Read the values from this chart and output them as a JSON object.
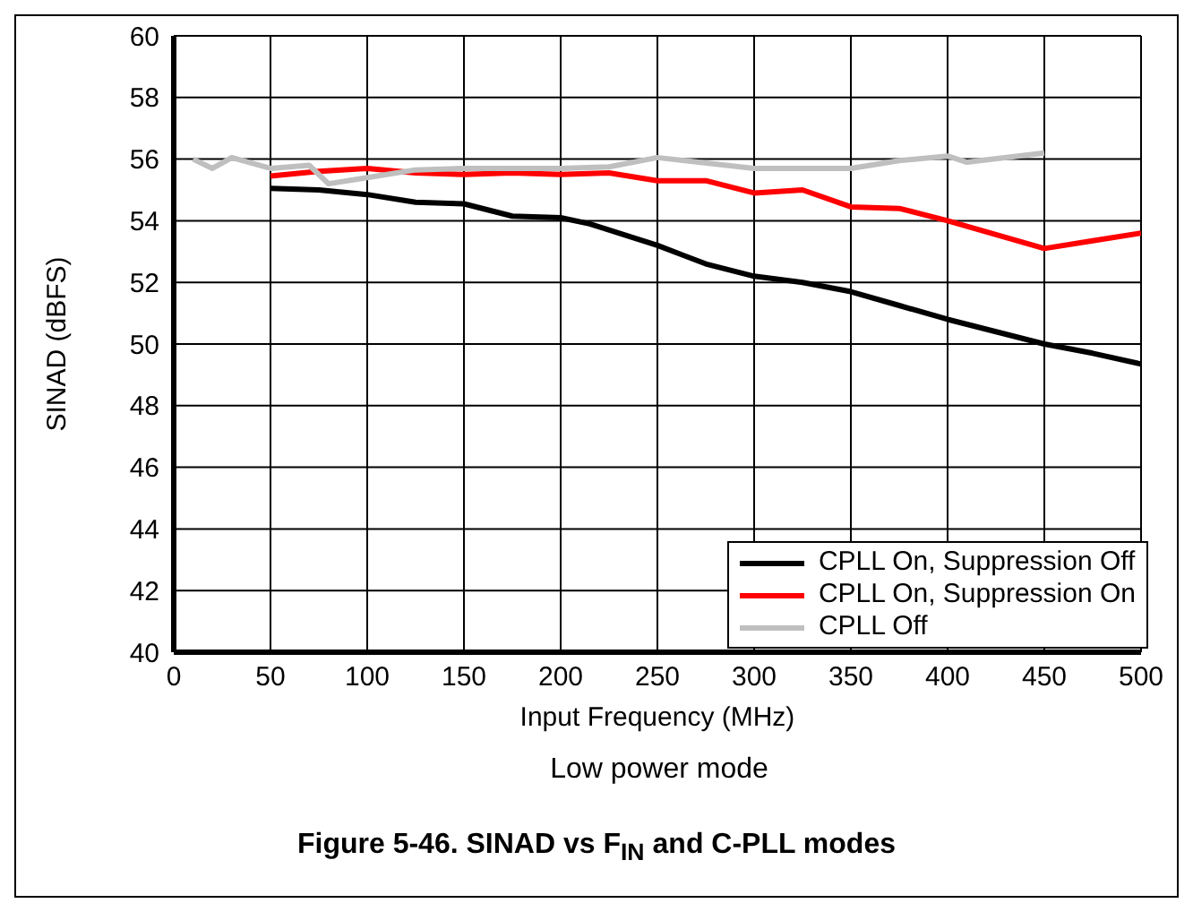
{
  "chart_data": {
    "type": "line",
    "title": "Figure 5-46. SINAD vs F$_{IN}$ and C-PLL modes",
    "subtitle": "Low power mode",
    "xlabel": "Input Frequency (MHz)",
    "ylabel": "SINAD (dBFS)",
    "xlim": [
      0,
      500
    ],
    "xticks": [
      0,
      50,
      100,
      150,
      200,
      250,
      300,
      350,
      400,
      450,
      500
    ],
    "ylim": [
      40,
      60
    ],
    "yticks": [
      40,
      42,
      44,
      46,
      48,
      50,
      52,
      54,
      56,
      58,
      60
    ],
    "grid": true,
    "legend": "bottom right",
    "marker": "none",
    "line_style": "solid",
    "series": [
      {
        "name": "CPLL On, Suppression Off",
        "color": "#000000",
        "x": [
          50,
          75,
          100,
          125,
          150,
          175,
          200,
          215,
          250,
          275,
          300,
          325,
          350,
          375,
          400,
          425,
          450,
          475,
          500
        ],
        "values": [
          55.05,
          55.0,
          54.85,
          54.6,
          54.55,
          54.15,
          54.1,
          53.9,
          53.2,
          52.6,
          52.2,
          52.0,
          51.7,
          51.25,
          50.8,
          50.4,
          50.0,
          49.7,
          49.35
        ]
      },
      {
        "name": "CPLL On, Suppression On",
        "color": "#ff0000",
        "x": [
          50,
          75,
          100,
          125,
          150,
          175,
          200,
          225,
          250,
          275,
          300,
          325,
          350,
          375,
          400,
          425,
          450,
          475,
          500
        ],
        "values": [
          55.45,
          55.6,
          55.7,
          55.55,
          55.5,
          55.55,
          55.5,
          55.55,
          55.3,
          55.3,
          54.9,
          55.0,
          54.45,
          54.4,
          54.0,
          53.55,
          53.1,
          53.35,
          53.6
        ]
      },
      {
        "name": "CPLL Off",
        "color": "#bfbfbf",
        "x": [
          10,
          20,
          30,
          50,
          70,
          80,
          100,
          125,
          150,
          200,
          225,
          250,
          300,
          350,
          375,
          400,
          410,
          450
        ],
        "values": [
          56.0,
          55.7,
          56.05,
          55.7,
          55.8,
          55.2,
          55.4,
          55.65,
          55.7,
          55.7,
          55.75,
          56.05,
          55.7,
          55.7,
          55.95,
          56.1,
          55.9,
          56.2
        ]
      }
    ]
  }
}
